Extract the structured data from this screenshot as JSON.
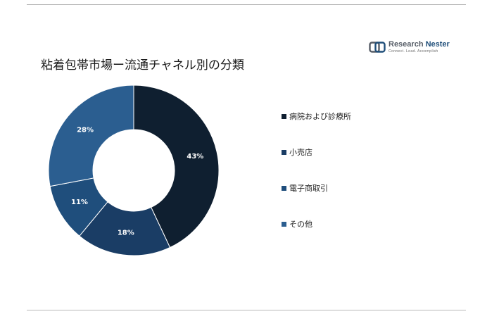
{
  "title": "粘着包帯市場ー流通チャネル別の分類",
  "logo": {
    "name_part1": "Research ",
    "name_part2": "Nester",
    "tagline": "Connect. Lead. Accomplish"
  },
  "colors": {
    "rule": "#b8b8b8",
    "label_text": "#ffffff"
  },
  "chart_data": {
    "type": "pie",
    "style": "donut",
    "categories": [
      "病院および診療所",
      "小売店",
      "電子商取引",
      "その他"
    ],
    "values": [
      43,
      18,
      11,
      28
    ],
    "data_labels": [
      "43%",
      "18%",
      "11%",
      "28%"
    ],
    "colors": [
      "#0f1f30",
      "#1a3d65",
      "#1f4e7c",
      "#2b5e90"
    ],
    "unit": "%",
    "legend_position": "right"
  }
}
